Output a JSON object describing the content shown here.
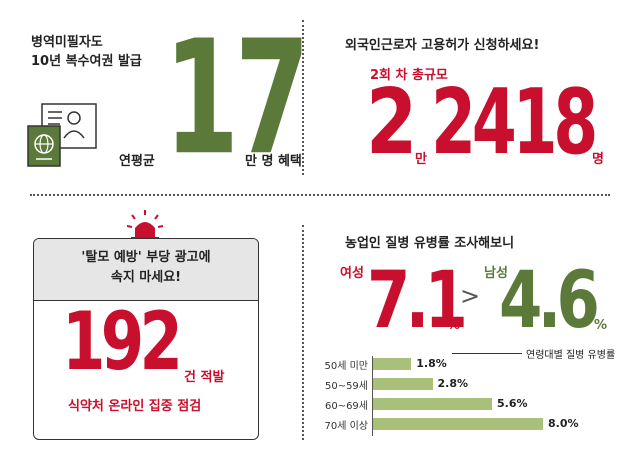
{
  "top_left": {
    "title_line1": "병역미필자도",
    "title_line2": "10년 복수여권 발급",
    "prefix": "연평균",
    "number": "17",
    "suffix": "만 명 혜택"
  },
  "top_right": {
    "title": "외국인근로자 고용허가 신청하세요!",
    "subtitle": "2회 차 총규모",
    "number_a": "2",
    "unit_a": "만",
    "number_b": "2418",
    "unit_b": "명"
  },
  "bottom_left": {
    "box_line1": "'탈모 예방' 부당 광고에",
    "box_line2": "속지 마세요!",
    "number": "192",
    "suffix": "건 적발",
    "caption": "식약처 온라인 집중 점검"
  },
  "bottom_right": {
    "title": "농업인 질병 유병률 조사해보니",
    "female_label": "여성",
    "female_value": "7.1",
    "female_unit": "%",
    "compare_symbol": ">",
    "male_label": "남성",
    "male_value": "4.6",
    "male_unit": "%",
    "legend": "연령대별 질병 유병률",
    "colors": {
      "bar": "#a9c07b",
      "green": "#5b7a3a",
      "red": "#c8102e"
    }
  },
  "chart_data": {
    "type": "bar",
    "title": "연령대별 질병 유병률",
    "categories": [
      "50세 미만",
      "50~59세",
      "60~69세",
      "70세 이상"
    ],
    "values": [
      1.8,
      2.8,
      5.6,
      8.0
    ],
    "value_labels": [
      "1.8%",
      "2.8%",
      "5.6%",
      "8.0%"
    ],
    "xlim": [
      0,
      8.0
    ],
    "orientation": "horizontal"
  }
}
